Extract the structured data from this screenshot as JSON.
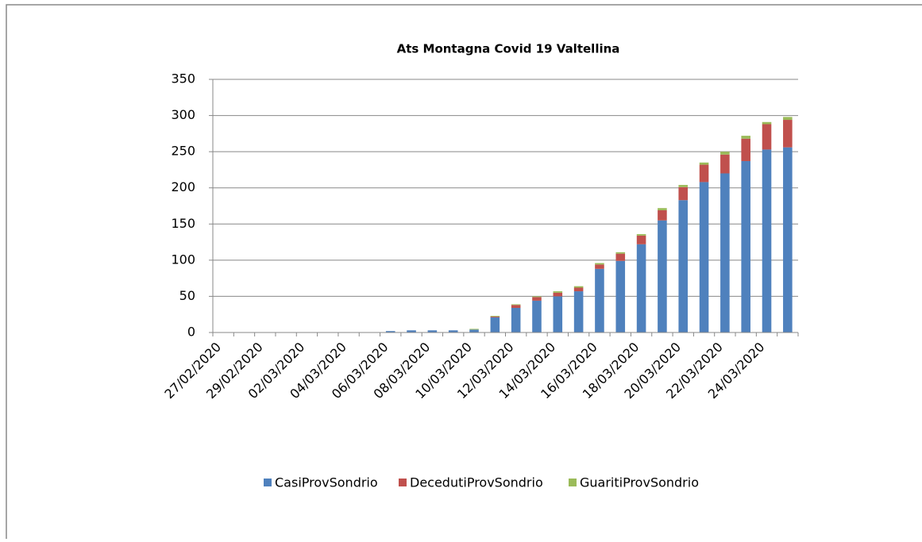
{
  "chart_data": {
    "type": "stacked_bar",
    "title": "Ats Montagna Covid 19  Valtellina",
    "categories": [
      "27/02/2020",
      null,
      "29/02/2020",
      null,
      "02/03/2020",
      null,
      "04/03/2020",
      null,
      "06/03/2020",
      null,
      "08/03/2020",
      null,
      "10/03/2020",
      null,
      "12/03/2020",
      null,
      "14/03/2020",
      null,
      "16/03/2020",
      null,
      "18/03/2020",
      null,
      "20/03/2020",
      null,
      "22/03/2020",
      null,
      "24/03/2020",
      null
    ],
    "series": [
      {
        "name": "CasiProvSondrio",
        "color": "#4f81bd",
        "values": [
          0,
          0,
          0,
          0,
          0,
          0,
          0,
          0,
          2,
          3,
          3,
          3,
          4,
          21,
          34,
          44,
          50,
          57,
          88,
          99,
          122,
          155,
          183,
          208,
          220,
          237,
          253,
          256
        ]
      },
      {
        "name": "DecedutiProvSondrio",
        "color": "#c0504d",
        "values": [
          0,
          0,
          0,
          0,
          0,
          0,
          0,
          0,
          0,
          0,
          0,
          0,
          0,
          1,
          4,
          5,
          5,
          5,
          6,
          10,
          12,
          14,
          18,
          24,
          26,
          31,
          35,
          38
        ]
      },
      {
        "name": "GuaritiProvSondrio",
        "color": "#9bbb59",
        "values": [
          0,
          0,
          0,
          0,
          0,
          0,
          0,
          0,
          0,
          0,
          0,
          0,
          1,
          1,
          1,
          1,
          2,
          2,
          2,
          2,
          2,
          3,
          3,
          3,
          4,
          4,
          3,
          4
        ]
      }
    ],
    "ylim": [
      0,
      350
    ],
    "yticks": [
      0,
      50,
      100,
      150,
      200,
      250,
      300,
      350
    ],
    "grid": true,
    "legend": "bottom"
  }
}
